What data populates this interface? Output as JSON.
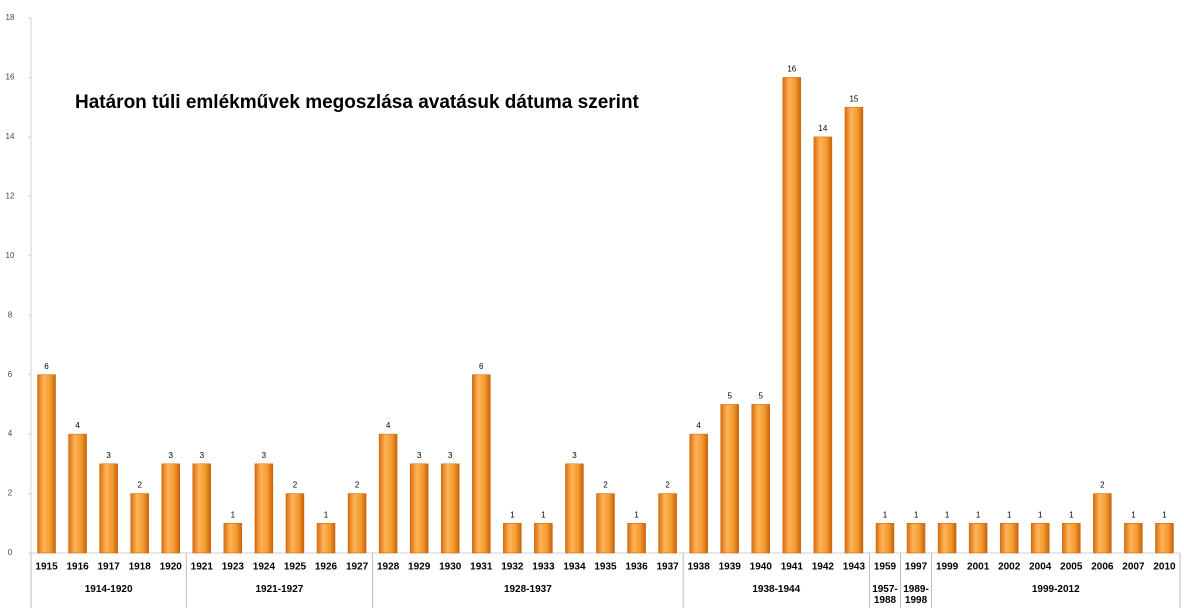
{
  "chart_data": {
    "type": "bar",
    "title": "Határon túli emlékművek megoszlása avatásuk dátuma szerint",
    "color": "#f39a2e",
    "ylim": [
      0,
      18
    ],
    "yticks": [
      0,
      2,
      4,
      6,
      8,
      10,
      12,
      14,
      16,
      18
    ],
    "groups": [
      {
        "label": "1914-1920",
        "categories": [
          "1915",
          "1916",
          "1917",
          "1918",
          "1920"
        ],
        "values": [
          6,
          4,
          3,
          2,
          3
        ]
      },
      {
        "label": "1921-1927",
        "categories": [
          "1921",
          "1923",
          "1924",
          "1925",
          "1926",
          "1927"
        ],
        "values": [
          3,
          1,
          3,
          2,
          1,
          2
        ]
      },
      {
        "label": "1928-1937",
        "categories": [
          "1928",
          "1929",
          "1930",
          "1931",
          "1932",
          "1933",
          "1934",
          "1935",
          "1936",
          "1937"
        ],
        "values": [
          4,
          3,
          3,
          6,
          1,
          1,
          3,
          2,
          1,
          2
        ]
      },
      {
        "label": "1938-1944",
        "categories": [
          "1938",
          "1939",
          "1940",
          "1941",
          "1942",
          "1943"
        ],
        "values": [
          4,
          5,
          5,
          16,
          14,
          15
        ]
      },
      {
        "label": "1957-1988",
        "categories": [
          "1959"
        ],
        "values": [
          1
        ]
      },
      {
        "label": "1989-1998",
        "categories": [
          "1997"
        ],
        "values": [
          1
        ]
      },
      {
        "label": "1999-2012",
        "categories": [
          "1999",
          "2001",
          "2002",
          "2004",
          "2005",
          "2006",
          "2007",
          "2010"
        ],
        "values": [
          1,
          1,
          1,
          1,
          1,
          2,
          1,
          1
        ]
      }
    ]
  }
}
